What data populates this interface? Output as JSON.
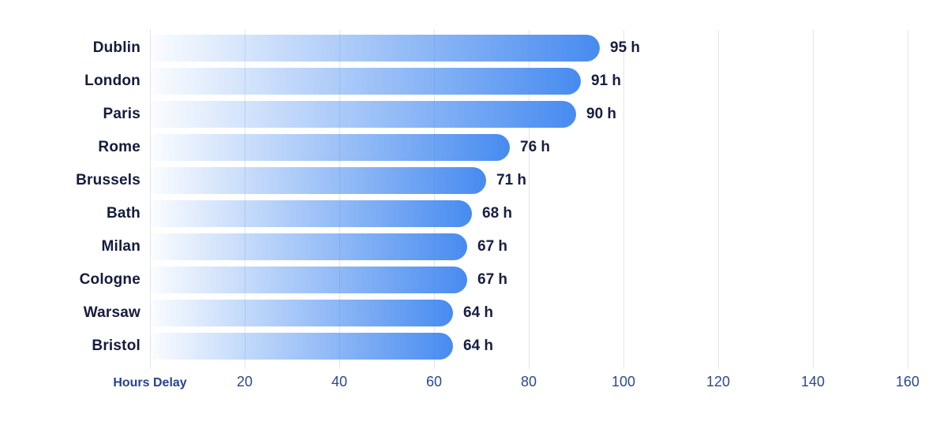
{
  "chart_data": {
    "type": "bar",
    "orientation": "horizontal",
    "title": "",
    "xlabel": "Hours Delay",
    "ylabel": "",
    "unit": "h",
    "categories": [
      "Dublin",
      "London",
      "Paris",
      "Rome",
      "Brussels",
      "Bath",
      "Milan",
      "Cologne",
      "Warsaw",
      "Bristol"
    ],
    "values": [
      95,
      91,
      90,
      76,
      71,
      68,
      67,
      67,
      64,
      64
    ],
    "value_labels": [
      "95 h",
      "91 h",
      "90 h",
      "76 h",
      "71 h",
      "68 h",
      "67 h",
      "67 h",
      "64 h",
      "64 h"
    ],
    "xlim": [
      0,
      166
    ],
    "grid": true,
    "gridline_values": [
      0,
      20,
      40,
      60,
      80,
      100,
      120,
      140,
      160
    ],
    "ticks": [
      20,
      40,
      60,
      80,
      100,
      120,
      140,
      160
    ],
    "tick_labels": [
      "20",
      "40",
      "60",
      "80",
      "100",
      "120",
      "140",
      "160"
    ],
    "legend": null,
    "colors": {
      "bar_gradient_start": "#ffffff",
      "bar_gradient_end": "#478bf0",
      "category_label": "#141b3d",
      "value_label": "#171e40",
      "tick_label": "#2b4892",
      "axis_title": "#27428f",
      "gridline": "#e3e4e9",
      "background": "#ffffff"
    }
  }
}
